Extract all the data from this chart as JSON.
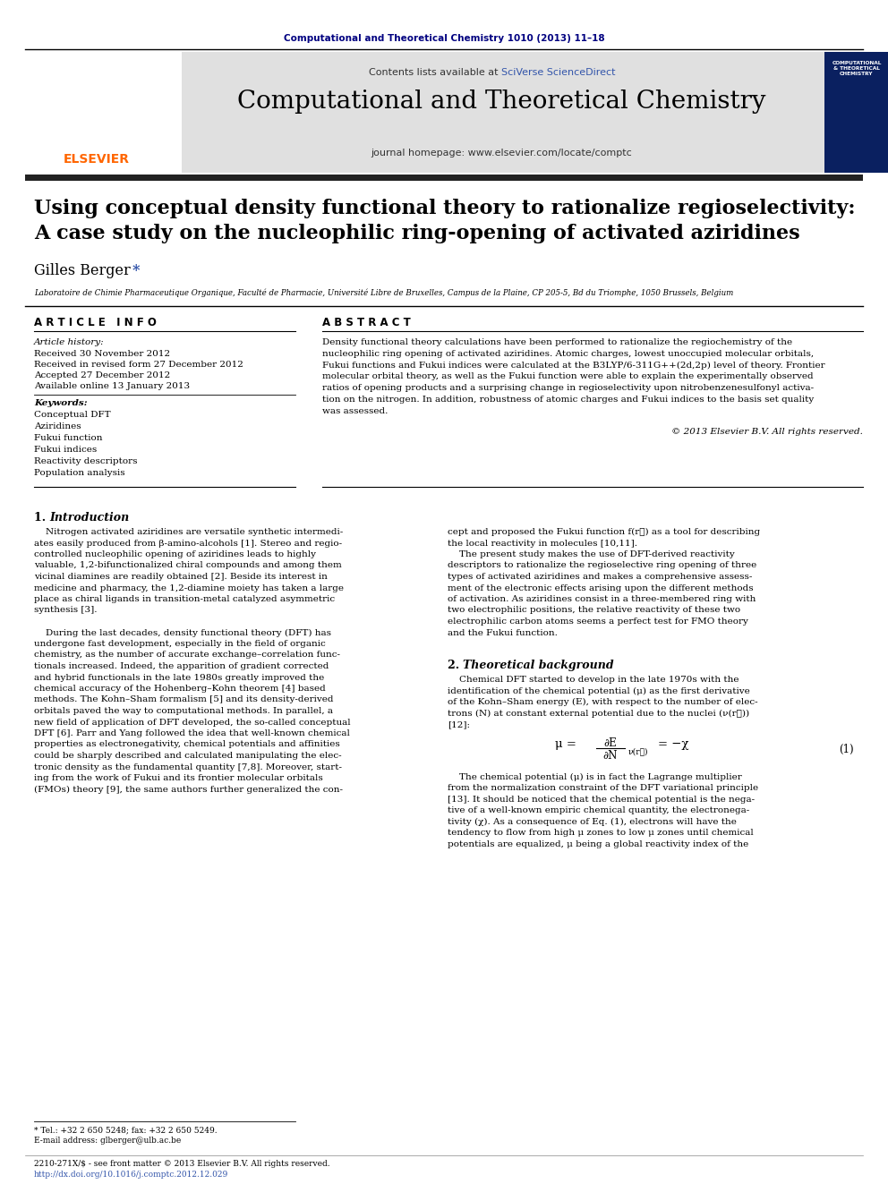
{
  "journal_ref": "Computational and Theoretical Chemistry 1010 (2013) 11–18",
  "journal_name": "Computational and Theoretical Chemistry",
  "journal_homepage": "journal homepage: www.elsevier.com/locate/comptc",
  "contents_line1": "Contents lists available at ",
  "contents_sciverse": "SciVerse ScienceDirect",
  "title_line1": "Using conceptual density functional theory to rationalize regioselectivity:",
  "title_line2": "A case study on the nucleophilic ring-opening of activated aziridines",
  "author": "Gilles Berger",
  "author_star": "*",
  "affiliation": "Laboratoire de Chimie Pharmaceutique Organique, Faculté de Pharmacie, Université Libre de Bruxelles, Campus de la Plaine, CP 205-5, Bd du Triomphe, 1050 Brussels, Belgium",
  "article_info_label": "A R T I C L E   I N F O",
  "abstract_label": "A B S T R A C T",
  "article_history_label": "Article history:",
  "received": "Received 30 November 2012",
  "received_revised": "Received in revised form 27 December 2012",
  "accepted": "Accepted 27 December 2012",
  "available": "Available online 13 January 2013",
  "keywords_label": "Keywords:",
  "keywords": [
    "Conceptual DFT",
    "Aziridines",
    "Fukui function",
    "Fukui indices",
    "Reactivity descriptors",
    "Population analysis"
  ],
  "abstract_lines": [
    "Density functional theory calculations have been performed to rationalize the regiochemistry of the",
    "nucleophilic ring opening of activated aziridines. Atomic charges, lowest unoccupied molecular orbitals,",
    "Fukui functions and Fukui indices were calculated at the B3LYP/6-311G++(2d,2p) level of theory. Frontier",
    "molecular orbital theory, as well as the Fukui function were able to explain the experimentally observed",
    "ratios of opening products and a surprising change in regioselectivity upon nitrobenzenesulfonyl activa-",
    "tion on the nitrogen. In addition, robustness of atomic charges and Fukui indices to the basis set quality",
    "was assessed."
  ],
  "copyright": "© 2013 Elsevier B.V. All rights reserved.",
  "intro1_lines": [
    "    Nitrogen activated aziridines are versatile synthetic intermedi-",
    "ates easily produced from β-amino-alcohols [1]. Stereo and regio-",
    "controlled nucleophilic opening of aziridines leads to highly",
    "valuable, 1,2-bifunctionalized chiral compounds and among them",
    "vicinal diamines are readily obtained [2]. Beside its interest in",
    "medicine and pharmacy, the 1,2-diamine moiety has taken a large",
    "place as chiral ligands in transition-metal catalyzed asymmetric",
    "synthesis [3].",
    "",
    "    During the last decades, density functional theory (DFT) has",
    "undergone fast development, especially in the field of organic",
    "chemistry, as the number of accurate exchange–correlation func-",
    "tionals increased. Indeed, the apparition of gradient corrected",
    "and hybrid functionals in the late 1980s greatly improved the",
    "chemical accuracy of the Hohenberg–Kohn theorem [4] based",
    "methods. The Kohn–Sham formalism [5] and its density-derived",
    "orbitals paved the way to computational methods. In parallel, a",
    "new field of application of DFT developed, the so-called conceptual",
    "DFT [6]. Parr and Yang followed the idea that well-known chemical",
    "properties as electronegativity, chemical potentials and affinities",
    "could be sharply described and calculated manipulating the elec-",
    "tronic density as the fundamental quantity [7,8]. Moreover, start-",
    "ing from the work of Fukui and its frontier molecular orbitals",
    "(FMOs) theory [9], the same authors further generalized the con-"
  ],
  "intro2_lines": [
    "cept and proposed the Fukui function f(r⃗) as a tool for describing",
    "the local reactivity in molecules [10,11].",
    "    The present study makes the use of DFT-derived reactivity",
    "descriptors to rationalize the regioselective ring opening of three",
    "types of activated aziridines and makes a comprehensive assess-",
    "ment of the electronic effects arising upon the different methods",
    "of activation. As aziridines consist in a three-membered ring with",
    "two electrophilic positions, the relative reactivity of these two",
    "electrophilic carbon atoms seems a perfect test for FMO theory",
    "and the Fukui function."
  ],
  "theory2_lines": [
    "    Chemical DFT started to develop in the late 1970s with the",
    "identification of the chemical potential (μ) as the first derivative",
    "of the Kohn–Sham energy (E), with respect to the number of elec-",
    "trons (N) at constant external potential due to the nuclei (ν(r⃗))",
    "[12]:"
  ],
  "theory2b_lines": [
    "    The chemical potential (μ) is in fact the Lagrange multiplier",
    "from the normalization constraint of the DFT variational principle",
    "[13]. It should be noticed that the chemical potential is the nega-",
    "tive of a well-known empiric chemical quantity, the electronega-",
    "tivity (χ). As a consequence of Eq. (1), electrons will have the",
    "tendency to flow from high μ zones to low μ zones until chemical",
    "potentials are equalized, μ being a global reactivity index of the"
  ],
  "footnote_tel": "* Tel.: +32 2 650 5248; fax: +32 2 650 5249.",
  "footnote_email": "E-mail address: glberger@ulb.ac.be",
  "footer_issn": "2210-271X/$ - see front matter © 2013 Elsevier B.V. All rights reserved.",
  "footer_doi": "http://dx.doi.org/10.1016/j.comptc.2012.12.029",
  "elsevier_color": "#FF6600",
  "link_color": "#3355AA",
  "header_bg": "#E0E0E0",
  "dark_bar_color": "#222222",
  "title_ref_color": "#000080",
  "cover_bg": "#0a2060"
}
